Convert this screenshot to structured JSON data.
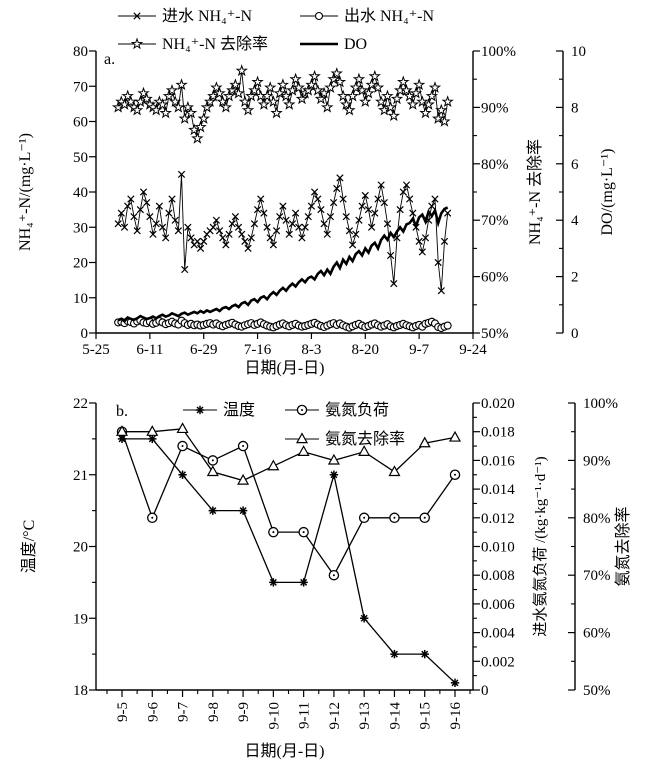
{
  "page": {
    "background": "#ffffff",
    "ink": "#000000"
  },
  "chart_data": [
    {
      "id": "a",
      "type": "line",
      "panel_label": "a.",
      "xlabel": "日期(月-日)",
      "x_tick_labels": [
        "5-25",
        "6-11",
        "6-29",
        "7-16",
        "8-3",
        "8-20",
        "9-7",
        "9-24"
      ],
      "x_days_per_tick": 17,
      "data_start_offset_days": 7,
      "axes": {
        "left": {
          "label": "NH₄⁺-N/(mg·L⁻¹)",
          "min": 0,
          "max": 80,
          "step": 10
        },
        "right_inner": {
          "label": "NH₄⁺-N 去除率",
          "min": 50,
          "max": 100,
          "step": 10,
          "minor": 5,
          "unit": "%"
        },
        "right_outer": {
          "label": "DO/(mg·L⁻¹)",
          "min": 0,
          "max": 10,
          "step": 2,
          "minor": 1
        }
      },
      "legend_rows": [
        [
          "进水 NH₄⁺-N",
          "出水 NH₄⁺-N"
        ],
        [
          "NH₄⁺-N 去除率",
          "DO"
        ]
      ],
      "series": [
        {
          "name": "进水 NH₄⁺-N",
          "marker": "cross",
          "axis": "left",
          "values": [
            31,
            34,
            30,
            36,
            38,
            33,
            29,
            35,
            40,
            37,
            33,
            28,
            31,
            36,
            30,
            27,
            34,
            38,
            32,
            29,
            45,
            18,
            30,
            27,
            25,
            26,
            24,
            26,
            28,
            29,
            30,
            32,
            29,
            27,
            25,
            28,
            31,
            33,
            30,
            28,
            26,
            24,
            27,
            31,
            35,
            38,
            34,
            30,
            27,
            25,
            29,
            33,
            36,
            32,
            28,
            31,
            34,
            30,
            27,
            30,
            33,
            36,
            40,
            38,
            35,
            31,
            28,
            33,
            37,
            41,
            44,
            38,
            33,
            29,
            25,
            28,
            32,
            36,
            39,
            35,
            30,
            34,
            38,
            42,
            37,
            31,
            22,
            14,
            27,
            35,
            40,
            42,
            38,
            34,
            30,
            26,
            23,
            27,
            32,
            36,
            38,
            20,
            12,
            26,
            34
          ]
        },
        {
          "name": "出水 NH₄⁺-N",
          "marker": "circle",
          "axis": "left",
          "values": [
            3.0,
            3.2,
            2.8,
            3.4,
            3.1,
            2.7,
            3.3,
            3.6,
            3.0,
            2.8,
            3.2,
            2.6,
            2.9,
            3.4,
            3.0,
            2.5,
            2.8,
            3.2,
            2.7,
            2.4,
            3.5,
            2.8,
            2.3,
            2.6,
            2.2,
            2.4,
            2.1,
            2.3,
            2.6,
            2.8,
            2.4,
            2.7,
            2.2,
            1.9,
            2.3,
            2.6,
            2.9,
            2.4,
            2.0,
            1.8,
            2.2,
            2.5,
            2.8,
            2.3,
            2.6,
            3.0,
            2.5,
            2.1,
            1.8,
            1.6,
            2.0,
            2.4,
            2.7,
            2.2,
            1.9,
            2.3,
            2.6,
            2.1,
            1.8,
            2.0,
            2.3,
            2.6,
            2.9,
            2.4,
            2.0,
            1.7,
            2.1,
            2.5,
            2.8,
            2.3,
            2.7,
            2.2,
            1.8,
            1.5,
            1.9,
            2.3,
            2.6,
            2.1,
            1.7,
            2.0,
            2.4,
            2.7,
            2.2,
            1.8,
            2.1,
            2.5,
            1.9,
            1.6,
            2.0,
            2.3,
            2.6,
            2.2,
            1.9,
            1.6,
            2.0,
            2.3,
            1.8,
            2.6,
            2.9,
            3.2,
            2.7,
            1.7,
            1.4,
            1.8,
            2.1
          ]
        },
        {
          "name": "NH₄⁺-N 去除率",
          "marker": "star",
          "axis": "right_inner",
          "values": [
            90,
            91,
            90.5,
            92,
            91,
            90,
            89.5,
            91,
            92.5,
            91.5,
            90.5,
            90,
            89.5,
            91,
            90.5,
            89,
            92,
            93,
            91,
            90,
            94,
            88,
            90,
            89,
            86,
            84.5,
            86.5,
            88,
            90,
            91,
            92,
            93.5,
            92.5,
            91,
            90,
            92,
            93,
            94,
            92.5,
            96.5,
            91,
            89.5,
            92,
            93,
            94.5,
            92,
            90.5,
            92,
            93.5,
            91,
            89,
            92.5,
            94,
            92,
            90.5,
            93,
            95,
            93.5,
            91.5,
            92.5,
            93,
            94,
            95.5,
            93,
            91.5,
            92.5,
            90,
            93.5,
            95,
            96,
            94.5,
            92,
            90.5,
            89.5,
            92,
            93.5,
            95,
            93,
            91,
            92.5,
            94,
            95.5,
            93.5,
            91,
            89.5,
            92,
            90,
            88.5,
            91.5,
            93,
            94.5,
            93,
            92,
            90.5,
            92.5,
            94,
            91,
            89,
            90.5,
            92,
            93.5,
            88,
            89.5,
            87.5,
            91
          ]
        },
        {
          "name": "DO",
          "marker": "none",
          "axis": "right_outer",
          "thick": true,
          "values": [
            0.45,
            0.5,
            0.42,
            0.55,
            0.5,
            0.47,
            0.52,
            0.6,
            0.55,
            0.5,
            0.53,
            0.58,
            0.52,
            0.6,
            0.65,
            0.58,
            0.62,
            0.7,
            0.65,
            0.6,
            0.68,
            0.72,
            0.65,
            0.7,
            0.75,
            0.7,
            0.78,
            0.72,
            0.8,
            0.75,
            0.8,
            0.85,
            0.78,
            0.88,
            0.92,
            0.85,
            0.95,
            1.0,
            0.92,
            1.05,
            1.1,
            1.0,
            1.15,
            1.2,
            1.1,
            1.25,
            1.3,
            1.2,
            1.35,
            1.45,
            1.35,
            1.5,
            1.6,
            1.5,
            1.65,
            1.75,
            1.65,
            1.8,
            1.9,
            1.8,
            1.95,
            2.0,
            1.9,
            2.1,
            2.2,
            2.05,
            2.25,
            2.1,
            2.35,
            2.5,
            2.3,
            2.6,
            2.45,
            2.7,
            2.55,
            2.8,
            2.9,
            2.75,
            3.0,
            2.85,
            3.1,
            3.2,
            3.0,
            3.3,
            3.45,
            3.3,
            3.55,
            3.4,
            3.6,
            3.75,
            3.6,
            3.85,
            3.9,
            4.05,
            3.8,
            4.1,
            4.2,
            3.95,
            4.3,
            4.15,
            4.35,
            3.9,
            4.25,
            4.4,
            4.45
          ]
        }
      ]
    },
    {
      "id": "b",
      "type": "line",
      "panel_label": "b.",
      "xlabel": "日期(月-日)",
      "categories": [
        "9-5",
        "9-6",
        "9-7",
        "9-8",
        "9-9",
        "9-10",
        "9-11",
        "9-12",
        "9-13",
        "9-14",
        "9-15",
        "9-16"
      ],
      "axes": {
        "left": {
          "label": "温度/°C",
          "min": 18,
          "max": 22,
          "step": 1,
          "minor": 0.5
        },
        "right_inner": {
          "label": "进水氨氮负荷 /(kg·kg⁻¹·d⁻¹)",
          "min": 0,
          "max": 0.02,
          "step": 0.002,
          "minor": 0.001
        },
        "right_outer": {
          "label": "氨氮去除率",
          "min": 50,
          "max": 100,
          "step": 10,
          "minor": 5,
          "unit": "%"
        }
      },
      "legend_rows": [
        [
          "温度",
          "氨氮负荷"
        ],
        [
          "氨氮去除率"
        ]
      ],
      "series": [
        {
          "name": "温度",
          "marker": "asterisk",
          "axis": "left",
          "values": [
            21.5,
            21.5,
            21.0,
            20.5,
            20.5,
            19.5,
            19.5,
            21.0,
            19.0,
            18.5,
            18.5,
            18.1
          ]
        },
        {
          "name": "氨氮负荷",
          "marker": "dotcircle",
          "axis": "right_inner",
          "values": [
            0.018,
            0.012,
            0.017,
            0.016,
            0.017,
            0.011,
            0.011,
            0.008,
            0.012,
            0.012,
            0.012,
            0.015
          ]
        },
        {
          "name": "氨氮去除率",
          "marker": "triangle",
          "axis": "right_outer",
          "values": [
            95,
            95,
            95.5,
            88,
            86.5,
            89,
            91.5,
            90,
            91.5,
            88,
            93,
            94
          ]
        }
      ]
    }
  ]
}
